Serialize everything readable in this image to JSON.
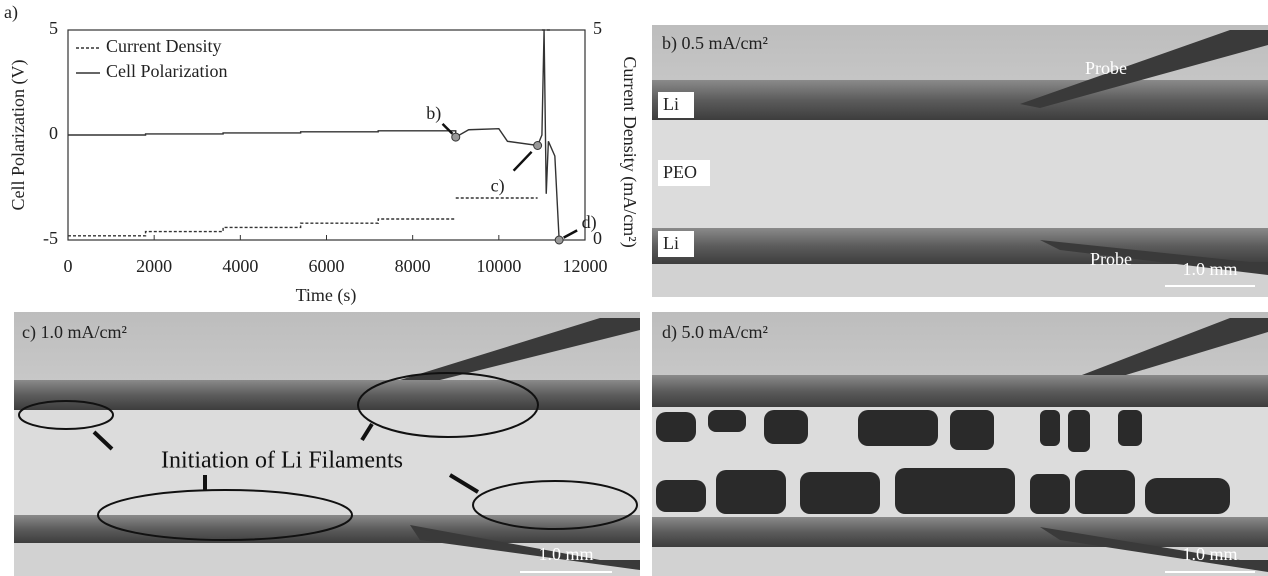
{
  "chart_data": {
    "type": "line",
    "panel_label": "a)",
    "xlabel": "Time (s)",
    "ylabel": "Cell Polarization (V)",
    "y2label": "Current Density (mA/cm²)",
    "xlim": [
      0,
      12000
    ],
    "xticks": [
      0,
      2000,
      4000,
      6000,
      8000,
      10000,
      12000
    ],
    "ylim": [
      -5,
      5
    ],
    "yticks": [
      -5,
      0,
      5
    ],
    "y2lim": [
      0,
      5
    ],
    "y2ticks": [
      0,
      5
    ],
    "series": [
      {
        "name": "Current Density",
        "color": "#333333",
        "style": "dotted",
        "axis": "y2",
        "x": [
          0,
          1800,
          1800,
          3600,
          3600,
          5400,
          5400,
          7200,
          7200,
          9000,
          9000,
          9000,
          10900,
          11000,
          11000,
          11200
        ],
        "values": [
          0.1,
          0.1,
          0.2,
          0.2,
          0.3,
          0.3,
          0.4,
          0.4,
          0.5,
          0.5,
          null,
          1.0,
          1.0,
          null,
          5.0,
          5.0
        ]
      },
      {
        "name": "Cell Polarization",
        "color": "#333333",
        "style": "solid",
        "x": [
          0,
          1800,
          1800,
          3600,
          3600,
          5400,
          5400,
          7200,
          7200,
          9000,
          9000,
          9300,
          10000,
          10200,
          10900,
          11000,
          11050,
          11100,
          11150,
          11300,
          11400
        ],
        "values": [
          0,
          0,
          0.05,
          0.05,
          0.1,
          0.1,
          0.15,
          0.15,
          0.2,
          0.2,
          -0.1,
          0.25,
          0.3,
          -0.3,
          -0.5,
          0,
          5,
          -2.8,
          -0.3,
          -1,
          -5
        ]
      }
    ],
    "markers": [
      {
        "label": "b)",
        "x": 9000,
        "y": -0.1
      },
      {
        "label": "c)",
        "x": 10900,
        "y": -0.5
      },
      {
        "label": "d)",
        "x": 11400,
        "y": -5
      }
    ]
  },
  "panels": [
    {
      "label": "b) 0.5 mA/cm²",
      "texts": [
        "Probe",
        "Li",
        "PEO",
        "Li",
        "Probe"
      ],
      "scale_bar": "1.0 mm"
    },
    {
      "label": "c) 1.0 mA/cm²",
      "texts": [
        "Initiation of Li Filaments"
      ],
      "scale_bar": "1.0 mm"
    },
    {
      "label": "d) 5.0 mA/cm²",
      "texts": [],
      "scale_bar": "1.0 mm"
    }
  ]
}
